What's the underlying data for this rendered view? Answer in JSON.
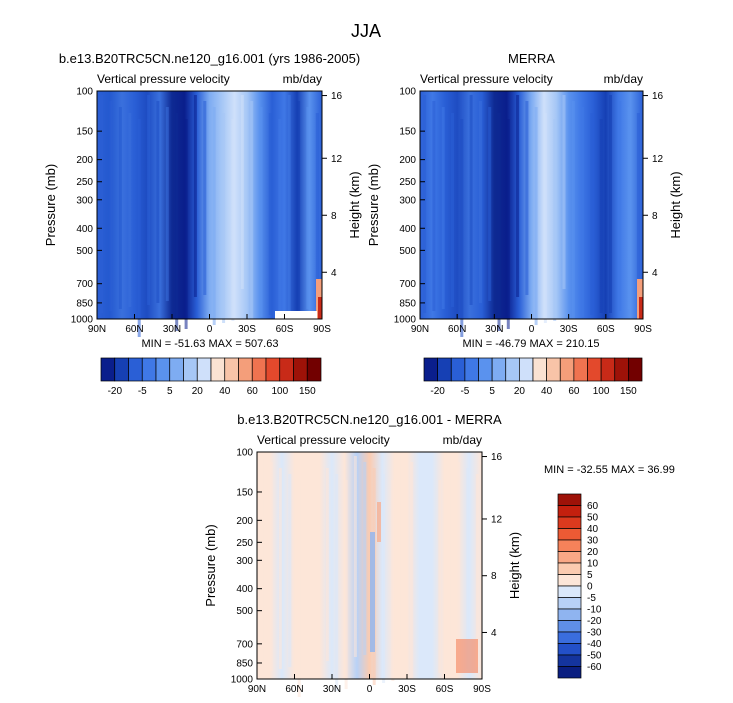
{
  "figure": {
    "title": "JJA"
  },
  "chart_data": [
    {
      "type": "heatmap",
      "title": "b.e13.B20TRC5CN.ne120_g16.001 (yrs 1986-2005)",
      "left_label": "Vertical pressure velocity",
      "right_label": "mb/day",
      "xlabel": "",
      "ylabel": "Pressure (mb)",
      "y2label": "Height (km)",
      "x_ticks": [
        "90N",
        "60N",
        "30N",
        "0",
        "30S",
        "60S",
        "90S"
      ],
      "y_ticks": [
        "100",
        "150",
        "200",
        "250",
        "300",
        "400",
        "500",
        "700",
        "850",
        "1000"
      ],
      "y2_ticks": [
        "16",
        "12",
        "8",
        "4"
      ],
      "min_text": "MIN = -51.63",
      "max_text": "MAX = 507.63",
      "colorbar": {
        "labels": [
          "-20",
          "-5",
          "5",
          "20",
          "40",
          "60",
          "100",
          "150"
        ],
        "colors": [
          "#0a1e8c",
          "#1640b4",
          "#2a5fd6",
          "#3f78e6",
          "#5a92ee",
          "#7eacf2",
          "#a6c7f6",
          "#cfe0fa",
          "#fae2d2",
          "#f8c4a8",
          "#f49e7a",
          "#ef7350",
          "#e3492c",
          "#c82a18",
          "#9e1208",
          "#720000"
        ]
      }
    },
    {
      "type": "heatmap",
      "title": "MERRA",
      "left_label": "Vertical pressure velocity",
      "right_label": "mb/day",
      "xlabel": "",
      "ylabel": "Pressure (mb)",
      "y2label": "Height (km)",
      "x_ticks": [
        "90N",
        "60N",
        "30N",
        "0",
        "30S",
        "60S",
        "90S"
      ],
      "y_ticks": [
        "100",
        "150",
        "200",
        "250",
        "300",
        "400",
        "500",
        "700",
        "850",
        "1000"
      ],
      "y2_ticks": [
        "16",
        "12",
        "8",
        "4"
      ],
      "min_text": "MIN = -46.79",
      "max_text": "MAX = 210.15",
      "colorbar": {
        "labels": [
          "-20",
          "-5",
          "5",
          "20",
          "40",
          "60",
          "100",
          "150"
        ],
        "colors": [
          "#0a1e8c",
          "#1640b4",
          "#2a5fd6",
          "#3f78e6",
          "#5a92ee",
          "#7eacf2",
          "#a6c7f6",
          "#cfe0fa",
          "#fae2d2",
          "#f8c4a8",
          "#f49e7a",
          "#ef7350",
          "#e3492c",
          "#c82a18",
          "#9e1208",
          "#720000"
        ]
      }
    },
    {
      "type": "heatmap",
      "title": "b.e13.B20TRC5CN.ne120_g16.001 - MERRA",
      "left_label": "Vertical pressure velocity",
      "right_label": "mb/day",
      "xlabel": "",
      "ylabel": "Pressure (mb)",
      "y2label": "Height (km)",
      "x_ticks": [
        "90N",
        "60N",
        "30N",
        "0",
        "30S",
        "60S",
        "90S"
      ],
      "y_ticks": [
        "100",
        "150",
        "200",
        "250",
        "300",
        "400",
        "500",
        "700",
        "850",
        "1000"
      ],
      "y2_ticks": [
        "16",
        "12",
        "8",
        "4"
      ],
      "min_text": "MIN = -32.55",
      "max_text": "MAX =  36.99",
      "colorbar": {
        "labels": [
          "60",
          "50",
          "40",
          "30",
          "20",
          "10",
          "5",
          "0",
          "-5",
          "-10",
          "-20",
          "-30",
          "-40",
          "-50",
          "-60"
        ],
        "colors": [
          "#9e1208",
          "#c4200e",
          "#dc3a1e",
          "#ec5a34",
          "#f5825a",
          "#f9a886",
          "#fbcbb0",
          "#fde6d8",
          "#dbe8fa",
          "#b8d1f6",
          "#8fb4f0",
          "#5f8fe8",
          "#3a6ddd",
          "#2350c8",
          "#14349e",
          "#0a1e80"
        ]
      }
    }
  ]
}
